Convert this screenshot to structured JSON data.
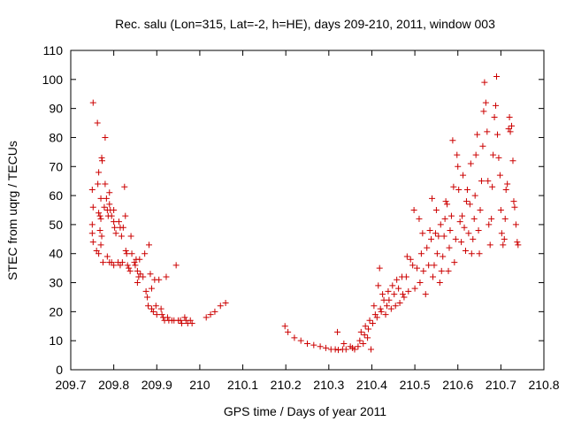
{
  "chart_data": {
    "type": "scatter",
    "title": "Rec. salu (Lon=315, Lat=-2, h=HE), days 209-210, 2011, window 003",
    "xlabel": "GPS time / Days of year 2011",
    "ylabel": "STEC from uqrg / TECUs",
    "xlim": [
      209.7,
      210.8
    ],
    "ylim": [
      0,
      110
    ],
    "x_ticks": [
      "209.7",
      "209.8",
      "209.9",
      "210",
      "210.1",
      "210.2",
      "210.3",
      "210.4",
      "210.5",
      "210.6",
      "210.7",
      "210.8"
    ],
    "y_ticks": [
      "0",
      "10",
      "20",
      "30",
      "40",
      "50",
      "60",
      "70",
      "80",
      "90",
      "100",
      "110"
    ],
    "grid": false,
    "marker": "+",
    "color": "#cc0000",
    "series": [
      {
        "points": [
          [
            209.752,
            92
          ],
          [
            209.75,
            62
          ],
          [
            209.752,
            56
          ],
          [
            209.75,
            50
          ],
          [
            209.75,
            47
          ],
          [
            209.752,
            44
          ],
          [
            209.762,
            85
          ],
          [
            209.765,
            68
          ],
          [
            209.763,
            64
          ],
          [
            209.765,
            54
          ],
          [
            209.768,
            53
          ],
          [
            209.772,
            73
          ],
          [
            209.773,
            72
          ],
          [
            209.77,
            59
          ],
          [
            209.77,
            52
          ],
          [
            209.768,
            48
          ],
          [
            209.772,
            46
          ],
          [
            209.77,
            43
          ],
          [
            209.76,
            41
          ],
          [
            209.765,
            40
          ],
          [
            209.775,
            37
          ],
          [
            209.78,
            80
          ],
          [
            209.78,
            64
          ],
          [
            209.783,
            59
          ],
          [
            209.778,
            56
          ],
          [
            209.785,
            55
          ],
          [
            209.787,
            53
          ],
          [
            209.79,
            61
          ],
          [
            209.79,
            57
          ],
          [
            209.792,
            55
          ],
          [
            209.795,
            53
          ],
          [
            209.8,
            55
          ],
          [
            209.8,
            51
          ],
          [
            209.802,
            49
          ],
          [
            209.805,
            47
          ],
          [
            209.785,
            39
          ],
          [
            209.79,
            37
          ],
          [
            209.795,
            37
          ],
          [
            209.8,
            36
          ],
          [
            209.81,
            37
          ],
          [
            209.815,
            36
          ],
          [
            209.82,
            37
          ],
          [
            209.812,
            51
          ],
          [
            209.815,
            49
          ],
          [
            209.818,
            46
          ],
          [
            209.825,
            63
          ],
          [
            209.827,
            53
          ],
          [
            209.822,
            49
          ],
          [
            209.828,
            41
          ],
          [
            209.83,
            40
          ],
          [
            209.832,
            36
          ],
          [
            209.835,
            35
          ],
          [
            209.838,
            34
          ],
          [
            209.84,
            46
          ],
          [
            209.842,
            40
          ],
          [
            209.848,
            37
          ],
          [
            209.85,
            36
          ],
          [
            209.852,
            38
          ],
          [
            209.855,
            34
          ],
          [
            209.858,
            32
          ],
          [
            209.855,
            30
          ],
          [
            209.86,
            38
          ],
          [
            209.862,
            33
          ],
          [
            209.868,
            32
          ],
          [
            209.872,
            40
          ],
          [
            209.875,
            27
          ],
          [
            209.878,
            25
          ],
          [
            209.882,
            43
          ],
          [
            209.885,
            33
          ],
          [
            209.888,
            28
          ],
          [
            209.88,
            22
          ],
          [
            209.888,
            21
          ],
          [
            209.892,
            20
          ],
          [
            209.895,
            31
          ],
          [
            209.898,
            22
          ],
          [
            209.9,
            19
          ],
          [
            209.905,
            31
          ],
          [
            209.91,
            21
          ],
          [
            209.912,
            19
          ],
          [
            209.915,
            18
          ],
          [
            209.918,
            17
          ],
          [
            209.922,
            32
          ],
          [
            209.925,
            18
          ],
          [
            209.928,
            17
          ],
          [
            209.935,
            17
          ],
          [
            209.94,
            17
          ],
          [
            209.945,
            36
          ],
          [
            209.95,
            17
          ],
          [
            209.955,
            17
          ],
          [
            209.958,
            16
          ],
          [
            209.965,
            18
          ],
          [
            209.968,
            17
          ],
          [
            209.972,
            16
          ],
          [
            209.978,
            17
          ],
          [
            209.982,
            16
          ],
          [
            210.015,
            18
          ],
          [
            210.025,
            19
          ],
          [
            210.035,
            20
          ],
          [
            210.048,
            22
          ],
          [
            210.06,
            23
          ],
          [
            210.198,
            15
          ],
          [
            210.205,
            13
          ],
          [
            210.22,
            11
          ],
          [
            210.235,
            10
          ],
          [
            210.25,
            9
          ],
          [
            210.265,
            8.5
          ],
          [
            210.28,
            8
          ],
          [
            210.293,
            7.5
          ],
          [
            210.305,
            7
          ],
          [
            210.315,
            7
          ],
          [
            210.322,
            6.8
          ],
          [
            210.32,
            13
          ],
          [
            210.332,
            7
          ],
          [
            210.34,
            7
          ],
          [
            210.335,
            9
          ],
          [
            210.35,
            8
          ],
          [
            210.355,
            7.5
          ],
          [
            210.36,
            7
          ],
          [
            210.368,
            8
          ],
          [
            210.372,
            10
          ],
          [
            210.375,
            13
          ],
          [
            210.38,
            9
          ],
          [
            210.383,
            12
          ],
          [
            210.385,
            15
          ],
          [
            210.39,
            11
          ],
          [
            210.392,
            14
          ],
          [
            210.395,
            17
          ],
          [
            210.398,
            7
          ],
          [
            210.402,
            16
          ],
          [
            210.405,
            22
          ],
          [
            210.408,
            19
          ],
          [
            210.412,
            18
          ],
          [
            210.415,
            29
          ],
          [
            210.418,
            35
          ],
          [
            210.42,
            21
          ],
          [
            210.422,
            20
          ],
          [
            210.425,
            26
          ],
          [
            210.428,
            24
          ],
          [
            210.432,
            19
          ],
          [
            210.435,
            22
          ],
          [
            210.438,
            27
          ],
          [
            210.44,
            24
          ],
          [
            210.445,
            21
          ],
          [
            210.448,
            29
          ],
          [
            210.452,
            26
          ],
          [
            210.455,
            22
          ],
          [
            210.458,
            31
          ],
          [
            210.462,
            28
          ],
          [
            210.465,
            23
          ],
          [
            210.47,
            32
          ],
          [
            210.472,
            26
          ],
          [
            210.475,
            25
          ],
          [
            210.48,
            32
          ],
          [
            210.482,
            39
          ],
          [
            210.485,
            27
          ],
          [
            210.49,
            38
          ],
          [
            210.495,
            36
          ],
          [
            210.498,
            55
          ],
          [
            210.5,
            28
          ],
          [
            210.505,
            35
          ],
          [
            210.51,
            52
          ],
          [
            210.512,
            30
          ],
          [
            210.515,
            40
          ],
          [
            210.518,
            47
          ],
          [
            210.52,
            34
          ],
          [
            210.525,
            26
          ],
          [
            210.528,
            42
          ],
          [
            210.532,
            36
          ],
          [
            210.535,
            48
          ],
          [
            210.538,
            45
          ],
          [
            210.54,
            59
          ],
          [
            210.542,
            32
          ],
          [
            210.545,
            36
          ],
          [
            210.548,
            47
          ],
          [
            210.55,
            55
          ],
          [
            210.552,
            40
          ],
          [
            210.555,
            46
          ],
          [
            210.558,
            30
          ],
          [
            210.56,
            50
          ],
          [
            210.562,
            34
          ],
          [
            210.565,
            39
          ],
          [
            210.568,
            46
          ],
          [
            210.57,
            52
          ],
          [
            210.572,
            58
          ],
          [
            210.575,
            57
          ],
          [
            210.578,
            34
          ],
          [
            210.58,
            42
          ],
          [
            210.582,
            48
          ],
          [
            210.585,
            53
          ],
          [
            210.588,
            79
          ],
          [
            210.59,
            63
          ],
          [
            210.592,
            37
          ],
          [
            210.595,
            45
          ],
          [
            210.598,
            74
          ],
          [
            210.6,
            70
          ],
          [
            210.602,
            62
          ],
          [
            210.605,
            51
          ],
          [
            210.608,
            44
          ],
          [
            210.61,
            53
          ],
          [
            210.612,
            67
          ],
          [
            210.615,
            49
          ],
          [
            210.618,
            41
          ],
          [
            210.62,
            58
          ],
          [
            210.622,
            62
          ],
          [
            210.625,
            47
          ],
          [
            210.628,
            57
          ],
          [
            210.63,
            71
          ],
          [
            210.632,
            40
          ],
          [
            210.635,
            45
          ],
          [
            210.638,
            52
          ],
          [
            210.64,
            60
          ],
          [
            210.642,
            74
          ],
          [
            210.645,
            81
          ],
          [
            210.648,
            48
          ],
          [
            210.65,
            40
          ],
          [
            210.652,
            55
          ],
          [
            210.655,
            65
          ],
          [
            210.658,
            77
          ],
          [
            210.66,
            89
          ],
          [
            210.662,
            99
          ],
          [
            210.665,
            92
          ],
          [
            210.668,
            82
          ],
          [
            210.67,
            65
          ],
          [
            210.672,
            50
          ],
          [
            210.675,
            43
          ],
          [
            210.678,
            52
          ],
          [
            210.68,
            63
          ],
          [
            210.682,
            74
          ],
          [
            210.685,
            87
          ],
          [
            210.688,
            91
          ],
          [
            210.69,
            101
          ],
          [
            210.692,
            81
          ],
          [
            210.695,
            73
          ],
          [
            210.698,
            67
          ],
          [
            210.7,
            55
          ],
          [
            210.702,
            47
          ],
          [
            210.705,
            43
          ],
          [
            210.708,
            45
          ],
          [
            210.71,
            52
          ],
          [
            210.712,
            62
          ],
          [
            210.715,
            64
          ],
          [
            210.718,
            83
          ],
          [
            210.72,
            87
          ],
          [
            210.722,
            82
          ],
          [
            210.725,
            84
          ],
          [
            210.728,
            72
          ],
          [
            210.73,
            58
          ],
          [
            210.732,
            56
          ],
          [
            210.735,
            50
          ],
          [
            210.738,
            44
          ],
          [
            210.74,
            43
          ]
        ]
      }
    ]
  }
}
